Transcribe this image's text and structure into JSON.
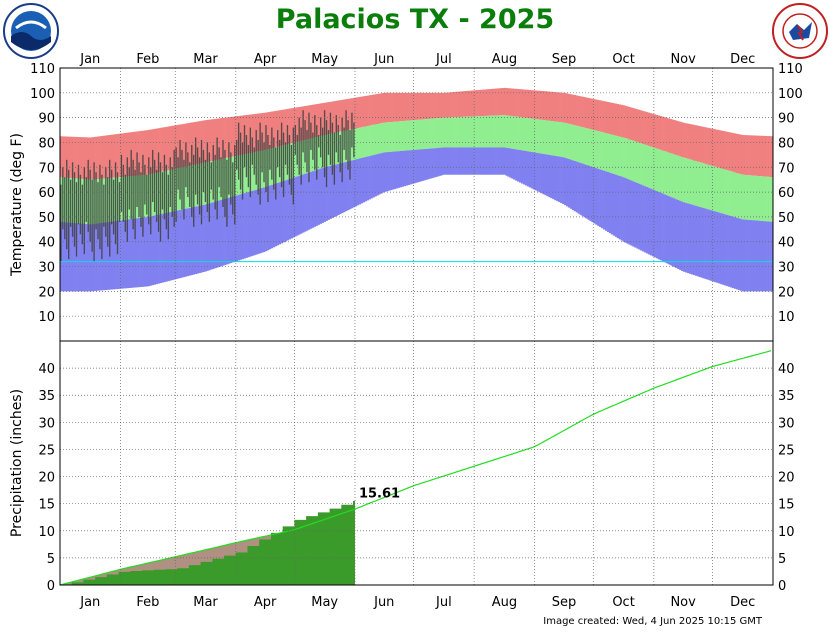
{
  "title": "Palacios TX - 2025",
  "footer": "Image created: Wed, 4 Jun 2025 10:15 GMT",
  "logos": {
    "left": "NOAA",
    "right": "NATIONAL WEATHER SERVICE"
  },
  "colors": {
    "record_band": "#f08080",
    "normal_band": "#90ee90",
    "low_band": "#8080f0",
    "observed_bar": "#404040",
    "freezing_line": "#00e0e0",
    "normal_precip_line": "#22dd22",
    "observed_precip_fill": "#3a9a2a",
    "normal_precip_fill": "#b09080",
    "title": "#0a7d0a"
  },
  "chart_data": [
    {
      "type": "bar",
      "name": "temperature",
      "ylabel": "Temperature (deg F)",
      "ylim": [
        0,
        110
      ],
      "yticks": [
        10,
        20,
        30,
        40,
        50,
        60,
        70,
        80,
        90,
        100,
        110
      ],
      "xlabels": [
        "Jan",
        "Feb",
        "Mar",
        "Apr",
        "May",
        "Jun",
        "Jul",
        "Aug",
        "Sep",
        "Oct",
        "Nov",
        "Dec"
      ],
      "freezing_line": 32,
      "normals": {
        "months": [
          "Jan",
          "Feb",
          "Mar",
          "Apr",
          "May",
          "Jun",
          "Jul",
          "Aug",
          "Sep",
          "Oct",
          "Nov",
          "Dec"
        ],
        "normal_high": [
          65,
          67,
          72,
          77,
          83,
          88,
          90,
          91,
          88,
          82,
          74,
          67
        ],
        "normal_low": [
          47,
          50,
          55,
          62,
          70,
          76,
          78,
          78,
          74,
          66,
          56,
          49
        ],
        "record_high": [
          82,
          85,
          89,
          92,
          96,
          100,
          100,
          102,
          100,
          95,
          88,
          83
        ],
        "record_low": [
          20,
          22,
          28,
          36,
          48,
          60,
          67,
          67,
          55,
          40,
          28,
          20
        ]
      },
      "observed_2025": {
        "months": [
          "Jan",
          "Feb",
          "Mar",
          "Apr",
          "May"
        ],
        "high": [
          68,
          72,
          77,
          83,
          88
        ],
        "low": [
          40,
          48,
          54,
          63,
          70
        ]
      }
    },
    {
      "type": "area",
      "name": "precipitation",
      "ylabel": "Precipitation (inches)",
      "ylim": [
        0,
        45
      ],
      "yticks": [
        0,
        5,
        10,
        15,
        20,
        25,
        30,
        35,
        40
      ],
      "xlabels": [
        "Jan",
        "Feb",
        "Mar",
        "Apr",
        "May",
        "Jun",
        "Jul",
        "Aug",
        "Sep",
        "Oct",
        "Nov",
        "Dec"
      ],
      "normal_cumulative": {
        "month_end": [
          "Jan",
          "Feb",
          "Mar",
          "Apr",
          "May",
          "Jun",
          "Jul",
          "Aug",
          "Sep",
          "Oct",
          "Nov",
          "Dec"
        ],
        "values": [
          2.9,
          5.2,
          7.8,
          10.2,
          14.0,
          18.3,
          21.9,
          25.5,
          31.5,
          36.3,
          40.3,
          43.3
        ]
      },
      "observed_cumulative_2025": {
        "month_end": [
          "Jan",
          "Feb",
          "Mar",
          "Apr",
          "May"
        ],
        "values": [
          2.5,
          3.0,
          6.0,
          12.0,
          15.61
        ]
      },
      "annotation": "15.61"
    }
  ]
}
